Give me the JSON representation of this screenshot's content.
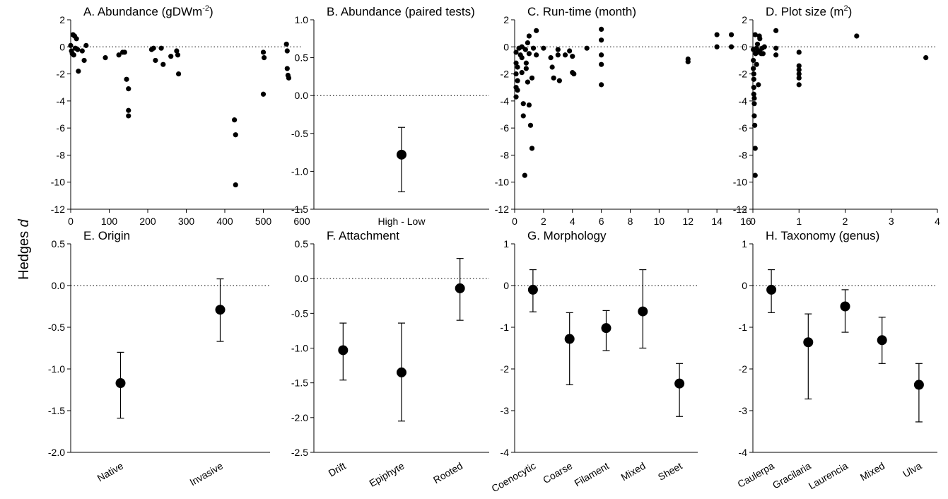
{
  "figure": {
    "ylabel": "Hedges",
    "ylabel_italic": "d"
  },
  "chart_data": [
    {
      "id": "A",
      "type": "scatter",
      "title": "A. Abundance (gDWm",
      "title_sup": "-2",
      "title_end": ")",
      "xlim": [
        0,
        600
      ],
      "xticks": [
        0,
        100,
        200,
        300,
        400,
        500,
        600
      ],
      "ylim": [
        -12,
        2
      ],
      "yticks": [
        2,
        0,
        -2,
        -4,
        -6,
        -8,
        -10,
        -12
      ],
      "zero_line": true,
      "points": [
        [
          0,
          0.1
        ],
        [
          2,
          -0.3
        ],
        [
          4,
          -0.5
        ],
        [
          6,
          0.9
        ],
        [
          8,
          -0.6
        ],
        [
          10,
          0.8
        ],
        [
          12,
          -0.1
        ],
        [
          15,
          0.6
        ],
        [
          18,
          -0.2
        ],
        [
          20,
          -1.8
        ],
        [
          30,
          -0.3
        ],
        [
          35,
          -1.0
        ],
        [
          40,
          0.1
        ],
        [
          90,
          -0.8
        ],
        [
          125,
          -0.6
        ],
        [
          135,
          -0.4
        ],
        [
          140,
          -0.4
        ],
        [
          145,
          -2.4
        ],
        [
          150,
          -3.1
        ],
        [
          150,
          -4.7
        ],
        [
          150,
          -5.1
        ],
        [
          210,
          -0.2
        ],
        [
          215,
          -0.1
        ],
        [
          220,
          -1.0
        ],
        [
          235,
          -0.1
        ],
        [
          240,
          -1.3
        ],
        [
          260,
          -0.7
        ],
        [
          275,
          -0.3
        ],
        [
          278,
          -0.6
        ],
        [
          280,
          -2.0
        ],
        [
          425,
          -5.4
        ],
        [
          428,
          -6.5
        ],
        [
          428,
          -10.2
        ],
        [
          500,
          -0.4
        ],
        [
          502,
          -0.8
        ],
        [
          500,
          -3.5
        ],
        [
          560,
          0.2
        ],
        [
          562,
          -0.3
        ],
        [
          562,
          -1.6
        ],
        [
          564,
          -2.1
        ],
        [
          566,
          -2.3
        ]
      ]
    },
    {
      "id": "B",
      "type": "errorbar",
      "title": "B. Abundance (paired tests)",
      "categories": [
        "High - Low"
      ],
      "ylim": [
        -1.5,
        1.0
      ],
      "yticks": [
        1.0,
        0.5,
        0.0,
        -0.5,
        -1.0,
        -1.5
      ],
      "yformat": 1,
      "zero_line": true,
      "values": [
        -0.78
      ],
      "ci_low": [
        -1.27
      ],
      "ci_high": [
        -0.42
      ],
      "rotate_labels": false
    },
    {
      "id": "C",
      "type": "scatter",
      "title": "C. Run-time (month)",
      "xlim": [
        0,
        16
      ],
      "xticks": [
        0,
        2,
        4,
        6,
        8,
        10,
        12,
        14,
        16
      ],
      "ylim": [
        -12,
        2
      ],
      "yticks": [
        2,
        0,
        -2,
        -4,
        -6,
        -8,
        -10,
        -12
      ],
      "zero_line": true,
      "points": [
        [
          0.1,
          -1.2
        ],
        [
          0.1,
          -2.0
        ],
        [
          0.1,
          -3.0
        ],
        [
          0.1,
          -3.7
        ],
        [
          0.1,
          -0.4
        ],
        [
          0.2,
          -1.5
        ],
        [
          0.2,
          -2.5
        ],
        [
          0.2,
          -3.2
        ],
        [
          0.3,
          -0.1
        ],
        [
          0.4,
          -0.6
        ],
        [
          0.5,
          0.0
        ],
        [
          0.5,
          -0.8
        ],
        [
          0.5,
          -1.9
        ],
        [
          0.6,
          -4.2
        ],
        [
          0.6,
          -5.1
        ],
        [
          0.7,
          -9.5
        ],
        [
          0.75,
          -0.2
        ],
        [
          0.8,
          -1.2
        ],
        [
          0.8,
          -1.6
        ],
        [
          0.9,
          0.3
        ],
        [
          0.9,
          -2.6
        ],
        [
          1.0,
          0.8
        ],
        [
          1.0,
          -0.5
        ],
        [
          1.0,
          -4.3
        ],
        [
          1.1,
          -5.8
        ],
        [
          1.2,
          -7.5
        ],
        [
          1.2,
          -2.3
        ],
        [
          1.3,
          -0.1
        ],
        [
          1.5,
          -0.6
        ],
        [
          1.5,
          1.2
        ],
        [
          2.0,
          -0.1
        ],
        [
          2.5,
          -0.8
        ],
        [
          2.6,
          -1.5
        ],
        [
          2.7,
          -2.3
        ],
        [
          3.0,
          -0.2
        ],
        [
          3.0,
          -0.6
        ],
        [
          3.1,
          -2.5
        ],
        [
          3.5,
          -0.6
        ],
        [
          3.8,
          -0.3
        ],
        [
          4.0,
          -0.7
        ],
        [
          4.0,
          -1.9
        ],
        [
          4.1,
          -2.0
        ],
        [
          5.0,
          -0.1
        ],
        [
          6.0,
          1.3
        ],
        [
          6.0,
          0.5
        ],
        [
          6.0,
          -0.6
        ],
        [
          6.0,
          -1.3
        ],
        [
          6.0,
          -2.8
        ],
        [
          12.0,
          -0.9
        ],
        [
          12.0,
          -1.1
        ],
        [
          14.0,
          0.9
        ],
        [
          14.0,
          0.0
        ],
        [
          15.0,
          0.9
        ],
        [
          15.0,
          0.0
        ]
      ]
    },
    {
      "id": "D",
      "type": "scatter",
      "title": "D. Plot size (m",
      "title_sup": "2",
      "title_end": ")",
      "xlim": [
        0,
        4
      ],
      "xticks": [
        0,
        1,
        2,
        3,
        4
      ],
      "ylim": [
        -12,
        2
      ],
      "yticks": [
        2,
        0,
        -2,
        -4,
        -6,
        -8,
        -10,
        -12
      ],
      "zero_line": true,
      "points": [
        [
          0.01,
          -0.2
        ],
        [
          0.01,
          -1.0
        ],
        [
          0.01,
          -1.6
        ],
        [
          0.02,
          -2.0
        ],
        [
          0.02,
          -2.4
        ],
        [
          0.02,
          -3.0
        ],
        [
          0.02,
          -3.5
        ],
        [
          0.03,
          -3.8
        ],
        [
          0.03,
          -4.2
        ],
        [
          0.03,
          -5.1
        ],
        [
          0.04,
          -5.8
        ],
        [
          0.05,
          -7.5
        ],
        [
          0.05,
          -9.5
        ],
        [
          0.05,
          0.9
        ],
        [
          0.06,
          -0.5
        ],
        [
          0.08,
          -1.3
        ],
        [
          0.08,
          -0.1
        ],
        [
          0.1,
          0.2
        ],
        [
          0.1,
          -0.4
        ],
        [
          0.12,
          -2.8
        ],
        [
          0.14,
          0.8
        ],
        [
          0.15,
          0.6
        ],
        [
          0.15,
          -0.3
        ],
        [
          0.18,
          -0.5
        ],
        [
          0.2,
          -0.1
        ],
        [
          0.22,
          -0.5
        ],
        [
          0.25,
          0.0
        ],
        [
          0.5,
          1.2
        ],
        [
          0.5,
          -0.1
        ],
        [
          0.5,
          -0.6
        ],
        [
          1.0,
          -0.4
        ],
        [
          1.0,
          -1.4
        ],
        [
          1.0,
          -1.7
        ],
        [
          1.0,
          -2.0
        ],
        [
          1.0,
          -2.3
        ],
        [
          1.0,
          -2.8
        ],
        [
          2.25,
          0.8
        ],
        [
          3.75,
          -0.8
        ]
      ]
    },
    {
      "id": "E",
      "type": "errorbar",
      "title": "E. Origin",
      "categories": [
        "Native",
        "Invasive"
      ],
      "ylim": [
        -2.0,
        0.5
      ],
      "yticks": [
        0.5,
        0.0,
        -0.5,
        -1.0,
        -1.5,
        -2.0
      ],
      "yformat": 1,
      "zero_line": true,
      "values": [
        -1.17,
        -0.29
      ],
      "ci_low": [
        -1.59,
        -0.67
      ],
      "ci_high": [
        -0.8,
        0.08
      ],
      "rotate_labels": true
    },
    {
      "id": "F",
      "type": "errorbar",
      "title": "F. Attachment",
      "categories": [
        "Drift",
        "Epiphyte",
        "Rooted"
      ],
      "ylim": [
        -2.5,
        0.5
      ],
      "yticks": [
        0.5,
        0.0,
        -0.5,
        -1.0,
        -1.5,
        -2.0,
        -2.5
      ],
      "yformat": 1,
      "zero_line": true,
      "values": [
        -1.03,
        -1.35,
        -0.14
      ],
      "ci_low": [
        -1.46,
        -2.05,
        -0.6
      ],
      "ci_high": [
        -0.64,
        -0.64,
        0.29
      ],
      "rotate_labels": true
    },
    {
      "id": "G",
      "type": "errorbar",
      "title": "G. Morphology",
      "categories": [
        "Coenocytic",
        "Coarse",
        "Filament",
        "Mixed",
        "Sheet"
      ],
      "ylim": [
        -4,
        1
      ],
      "yticks": [
        1,
        0,
        -1,
        -2,
        -3,
        -4
      ],
      "yformat": 0,
      "zero_line": true,
      "values": [
        -0.1,
        -1.28,
        -1.02,
        -0.62,
        -2.35
      ],
      "ci_low": [
        -0.63,
        -2.38,
        -1.56,
        -1.5,
        -3.14
      ],
      "ci_high": [
        0.38,
        -0.65,
        -0.6,
        0.38,
        -1.87
      ],
      "rotate_labels": true
    },
    {
      "id": "H",
      "type": "errorbar",
      "title": "H. Taxonomy (genus)",
      "categories": [
        "Caulerpa",
        "Gracilaria",
        "Laurencia",
        "Mixed",
        "Ulva"
      ],
      "ylim": [
        -4,
        1
      ],
      "yticks": [
        1,
        0,
        -1,
        -2,
        -3,
        -4
      ],
      "yformat": 0,
      "zero_line": true,
      "values": [
        -0.1,
        -1.36,
        -0.5,
        -1.31,
        -2.38
      ],
      "ci_low": [
        -0.65,
        -2.72,
        -1.12,
        -1.87,
        -3.27
      ],
      "ci_high": [
        0.38,
        -0.68,
        -0.1,
        -0.76,
        -1.87
      ],
      "rotate_labels": true
    }
  ]
}
